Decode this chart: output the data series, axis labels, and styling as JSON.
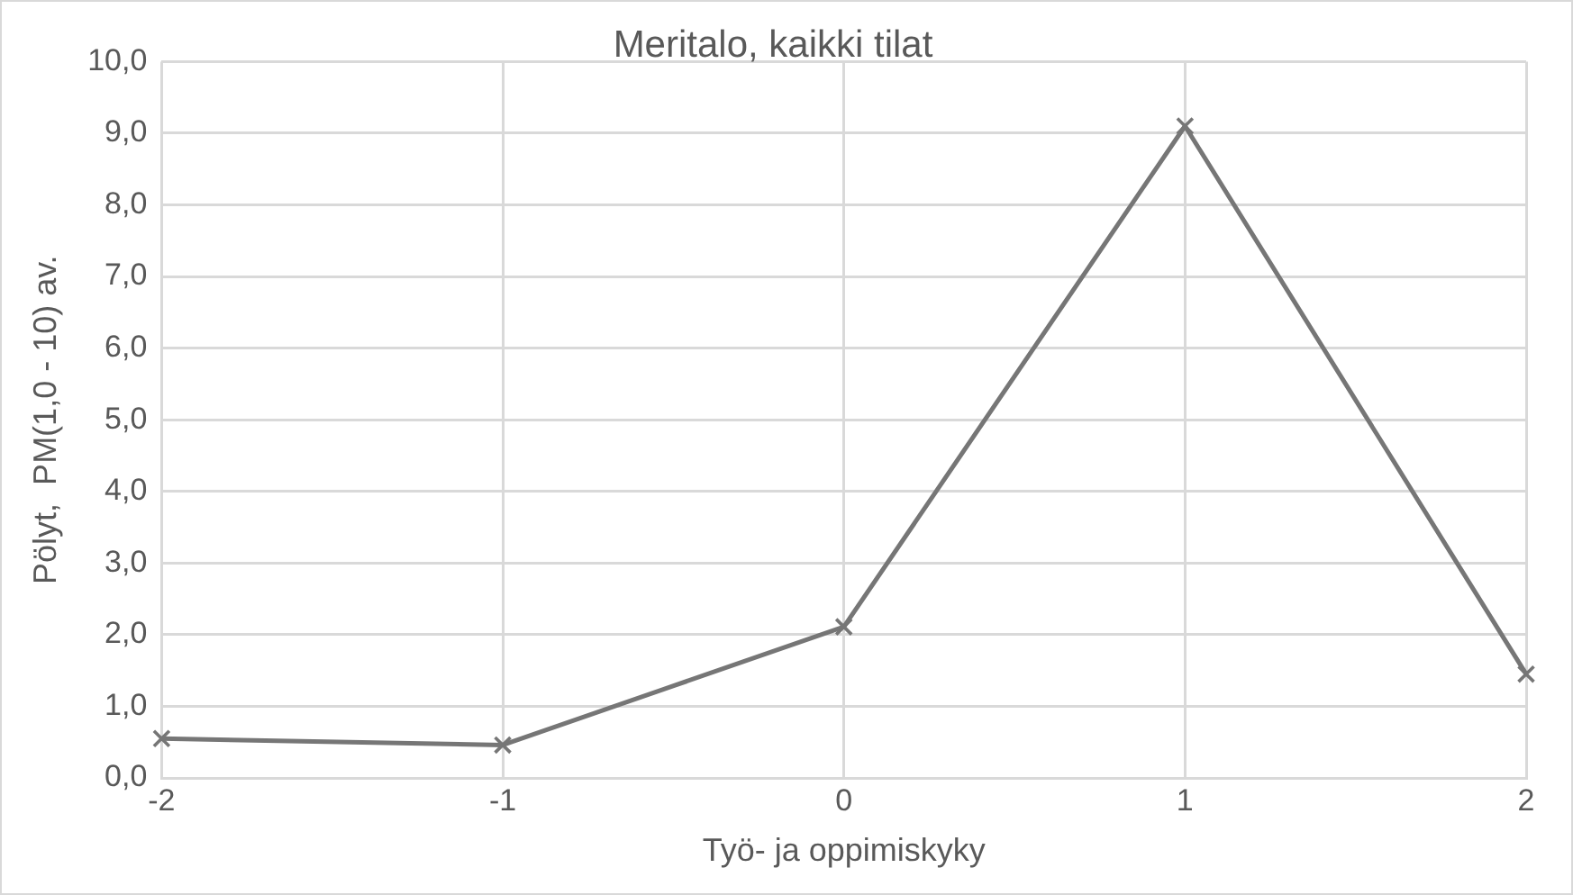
{
  "chart_data": {
    "type": "line",
    "title": "Meritalo, kaikki tilat",
    "xlabel": "Työ- ja oppimiskyky",
    "ylabel": "Pölyt,  PM(1,0 - 10) av.",
    "x": [
      -2,
      -1,
      0,
      1,
      2
    ],
    "series": [
      {
        "color": "#767676",
        "values": [
          0.55,
          0.46,
          2.11,
          9.1,
          1.45
        ]
      }
    ],
    "xlim": [
      -2,
      2
    ],
    "xticks": [
      -2,
      -1,
      0,
      1,
      2
    ],
    "ylim": [
      0,
      10
    ],
    "yticks": [
      {
        "value": 0,
        "label": "0,0"
      },
      {
        "value": 1,
        "label": "1,0"
      },
      {
        "value": 2,
        "label": "2,0"
      },
      {
        "value": 3,
        "label": "3,0"
      },
      {
        "value": 4,
        "label": "4,0"
      },
      {
        "value": 5,
        "label": "5,0"
      },
      {
        "value": 6,
        "label": "6,0"
      },
      {
        "value": 7,
        "label": "7,0"
      },
      {
        "value": 8,
        "label": "8,0"
      },
      {
        "value": 9,
        "label": "9,0"
      },
      {
        "value": 10,
        "label": "10,0"
      }
    ],
    "grid": true,
    "legend": false,
    "marker": "cross",
    "line_style": "solid"
  }
}
